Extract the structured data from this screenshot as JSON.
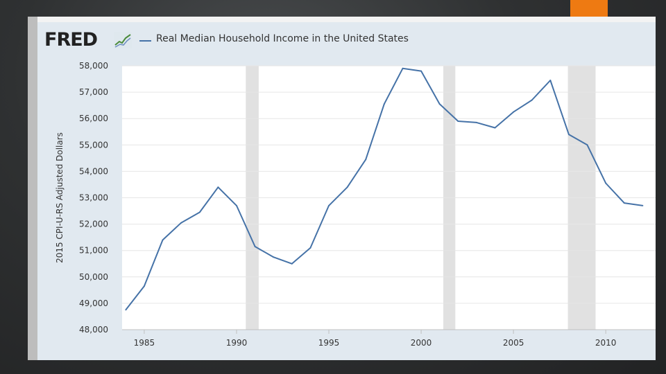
{
  "colors": {
    "accent": "#ee7a12",
    "series": "#4572a7",
    "recession": "#e1e1e1",
    "plot_bg": "#ffffff",
    "chart_bg": "#e1e9f0"
  },
  "header": {
    "logo_text": "FRED",
    "logo_icon": "line-chart-icon",
    "legend_label": "Real Median Household Income in the United States"
  },
  "chart_data": {
    "type": "line",
    "title": "",
    "ylabel": "2015 CPI-U-RS Adjusted Dollars",
    "xlabel": "",
    "xlim": [
      1983.8,
      2012.7
    ],
    "ylim": [
      48000,
      58000
    ],
    "x_ticks": [
      1985,
      1990,
      1995,
      2000,
      2005,
      2010
    ],
    "x_tick_labels": [
      "1985",
      "1990",
      "1995",
      "2000",
      "2005",
      "2010"
    ],
    "y_ticks": [
      48000,
      49000,
      50000,
      51000,
      52000,
      53000,
      54000,
      55000,
      56000,
      57000,
      58000
    ],
    "y_tick_labels": [
      "48,000",
      "49,000",
      "50,000",
      "51,000",
      "52,000",
      "53,000",
      "54,000",
      "55,000",
      "56,000",
      "57,000",
      "58,000"
    ],
    "grid": true,
    "recessions": [
      [
        1990.5,
        1991.2
      ],
      [
        2001.2,
        2001.85
      ],
      [
        2007.95,
        2009.45
      ]
    ],
    "series": [
      {
        "name": "Real Median Household Income in the United States",
        "x": [
          1984,
          1985,
          1986,
          1987,
          1988,
          1989,
          1990,
          1991,
          1992,
          1993,
          1994,
          1995,
          1996,
          1997,
          1998,
          1999,
          2000,
          2001,
          2002,
          2003,
          2004,
          2005,
          2006,
          2007,
          2008,
          2009,
          2010,
          2011,
          2012
        ],
        "values": [
          48750,
          49650,
          51400,
          52050,
          52450,
          53400,
          52700,
          51150,
          50750,
          50500,
          51100,
          52700,
          53400,
          54450,
          56550,
          57900,
          57800,
          56550,
          55900,
          55850,
          55650,
          56250,
          56700,
          57450,
          55400,
          55000,
          53550,
          52800,
          52700
        ]
      }
    ]
  }
}
